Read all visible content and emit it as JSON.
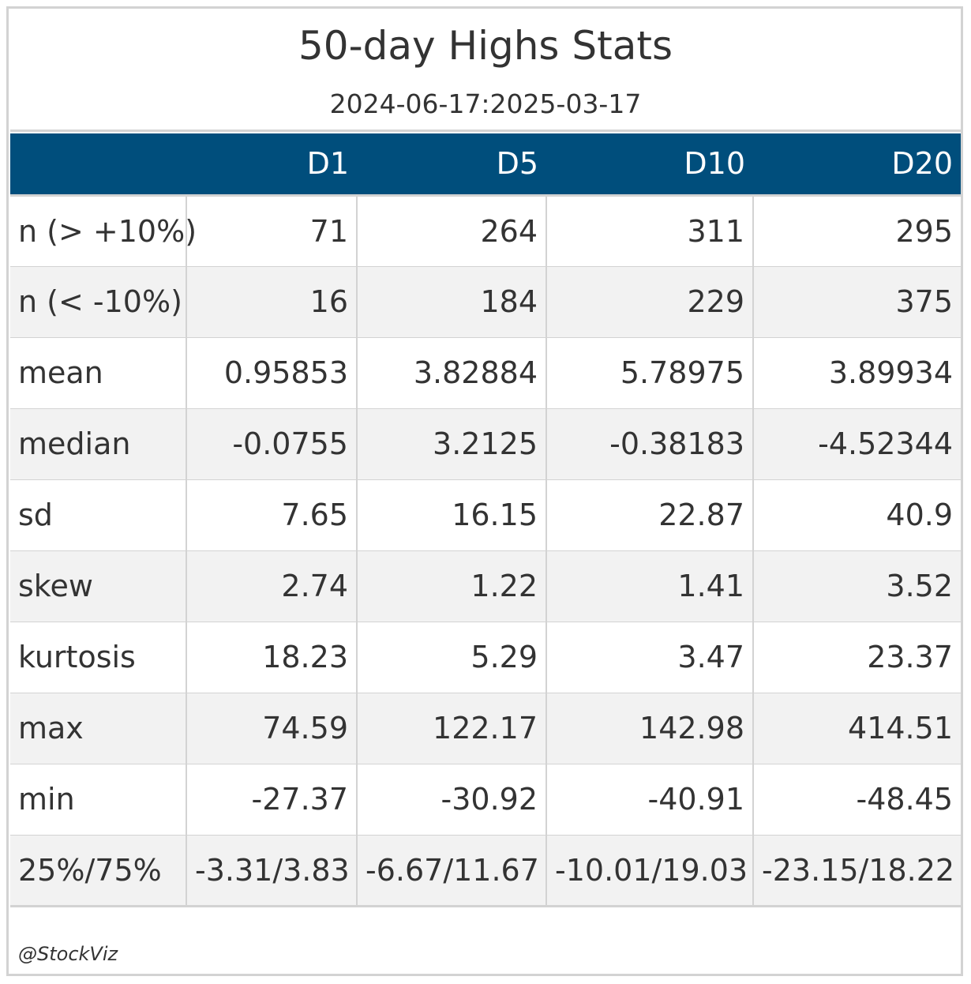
{
  "table": {
    "title": "50-day Highs Stats",
    "subtitle": "2024-06-17:2025-03-17",
    "columns": [
      "",
      "D1",
      "D5",
      "D10",
      "D20"
    ],
    "rows": [
      {
        "label": "n (> +10%)",
        "values": [
          "71",
          "264",
          "311",
          "295"
        ]
      },
      {
        "label": "n (< -10%)",
        "values": [
          "16",
          "184",
          "229",
          "375"
        ]
      },
      {
        "label": "mean",
        "values": [
          "0.95853",
          "3.82884",
          "5.78975",
          "3.89934"
        ]
      },
      {
        "label": "median",
        "values": [
          "-0.0755",
          "3.2125",
          "-0.38183",
          "-4.52344"
        ]
      },
      {
        "label": "sd",
        "values": [
          "7.65",
          "16.15",
          "22.87",
          "40.9"
        ]
      },
      {
        "label": "skew",
        "values": [
          "2.74",
          "1.22",
          "1.41",
          "3.52"
        ]
      },
      {
        "label": "kurtosis",
        "values": [
          "18.23",
          "5.29",
          "3.47",
          "23.37"
        ]
      },
      {
        "label": "max",
        "values": [
          "74.59",
          "122.17",
          "142.98",
          "414.51"
        ]
      },
      {
        "label": "min",
        "values": [
          "-27.37",
          "-30.92",
          "-40.91",
          "-48.45"
        ]
      },
      {
        "label": "25%/75%",
        "values": [
          "-3.31/3.83",
          "-6.67/11.67",
          "-10.01/19.03",
          "-23.15/18.22"
        ]
      }
    ],
    "footer": "@StockViz"
  },
  "colors": {
    "header_bg": "#004e7c",
    "header_text": "#ffffff",
    "stripe_bg": "#f2f2f2",
    "border": "#d3d3d3",
    "text": "#333333"
  }
}
